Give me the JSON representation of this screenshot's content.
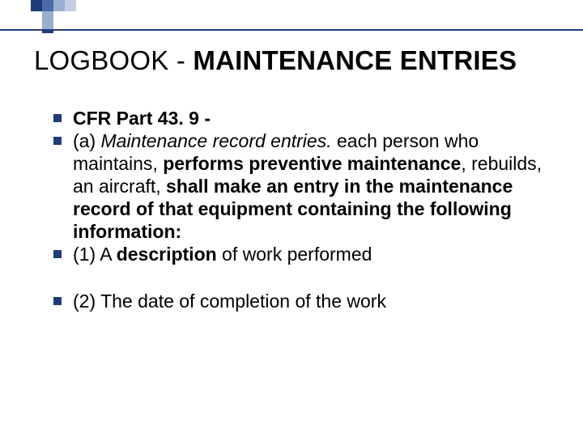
{
  "colors": {
    "accent_dark": "#1f3b78",
    "accent_mid": "#4a6aa8",
    "accent_light": "#9aaed1",
    "accent_pale": "#c3cee3",
    "text": "#000000",
    "background": "#ffffff"
  },
  "typography": {
    "title_fontsize": 33,
    "body_fontsize": 23,
    "font_family": "Arial"
  },
  "title": {
    "prefix": "LOGBOOK - ",
    "bold": "MAINTENANCE ENTRIES"
  },
  "bullets": [
    {
      "segments": [
        {
          "text": "CFR Part 43. 9 -",
          "bold": true,
          "italic": false
        }
      ]
    },
    {
      "segments": [
        {
          "text": "(a) ",
          "bold": false,
          "italic": false
        },
        {
          "text": "Maintenance record entries.",
          "bold": false,
          "italic": true
        },
        {
          "text": " each person who maintains, ",
          "bold": false,
          "italic": false
        },
        {
          "text": "performs preventive maintenance",
          "bold": true,
          "italic": false
        },
        {
          "text": ", rebuilds, an aircraft, ",
          "bold": false,
          "italic": false
        },
        {
          "text": "shall make an entry in the maintenance record of that equipment containing the following information:",
          "bold": true,
          "italic": false
        }
      ]
    },
    {
      "segments": [
        {
          "text": "(1) A ",
          "bold": false,
          "italic": false
        },
        {
          "text": "description",
          "bold": true,
          "italic": false
        },
        {
          "text": " of work performed",
          "bold": false,
          "italic": false
        }
      ]
    },
    {
      "gap": true,
      "segments": [
        {
          "text": "(2) The date of completion of the work",
          "bold": false,
          "italic": false
        }
      ]
    }
  ]
}
